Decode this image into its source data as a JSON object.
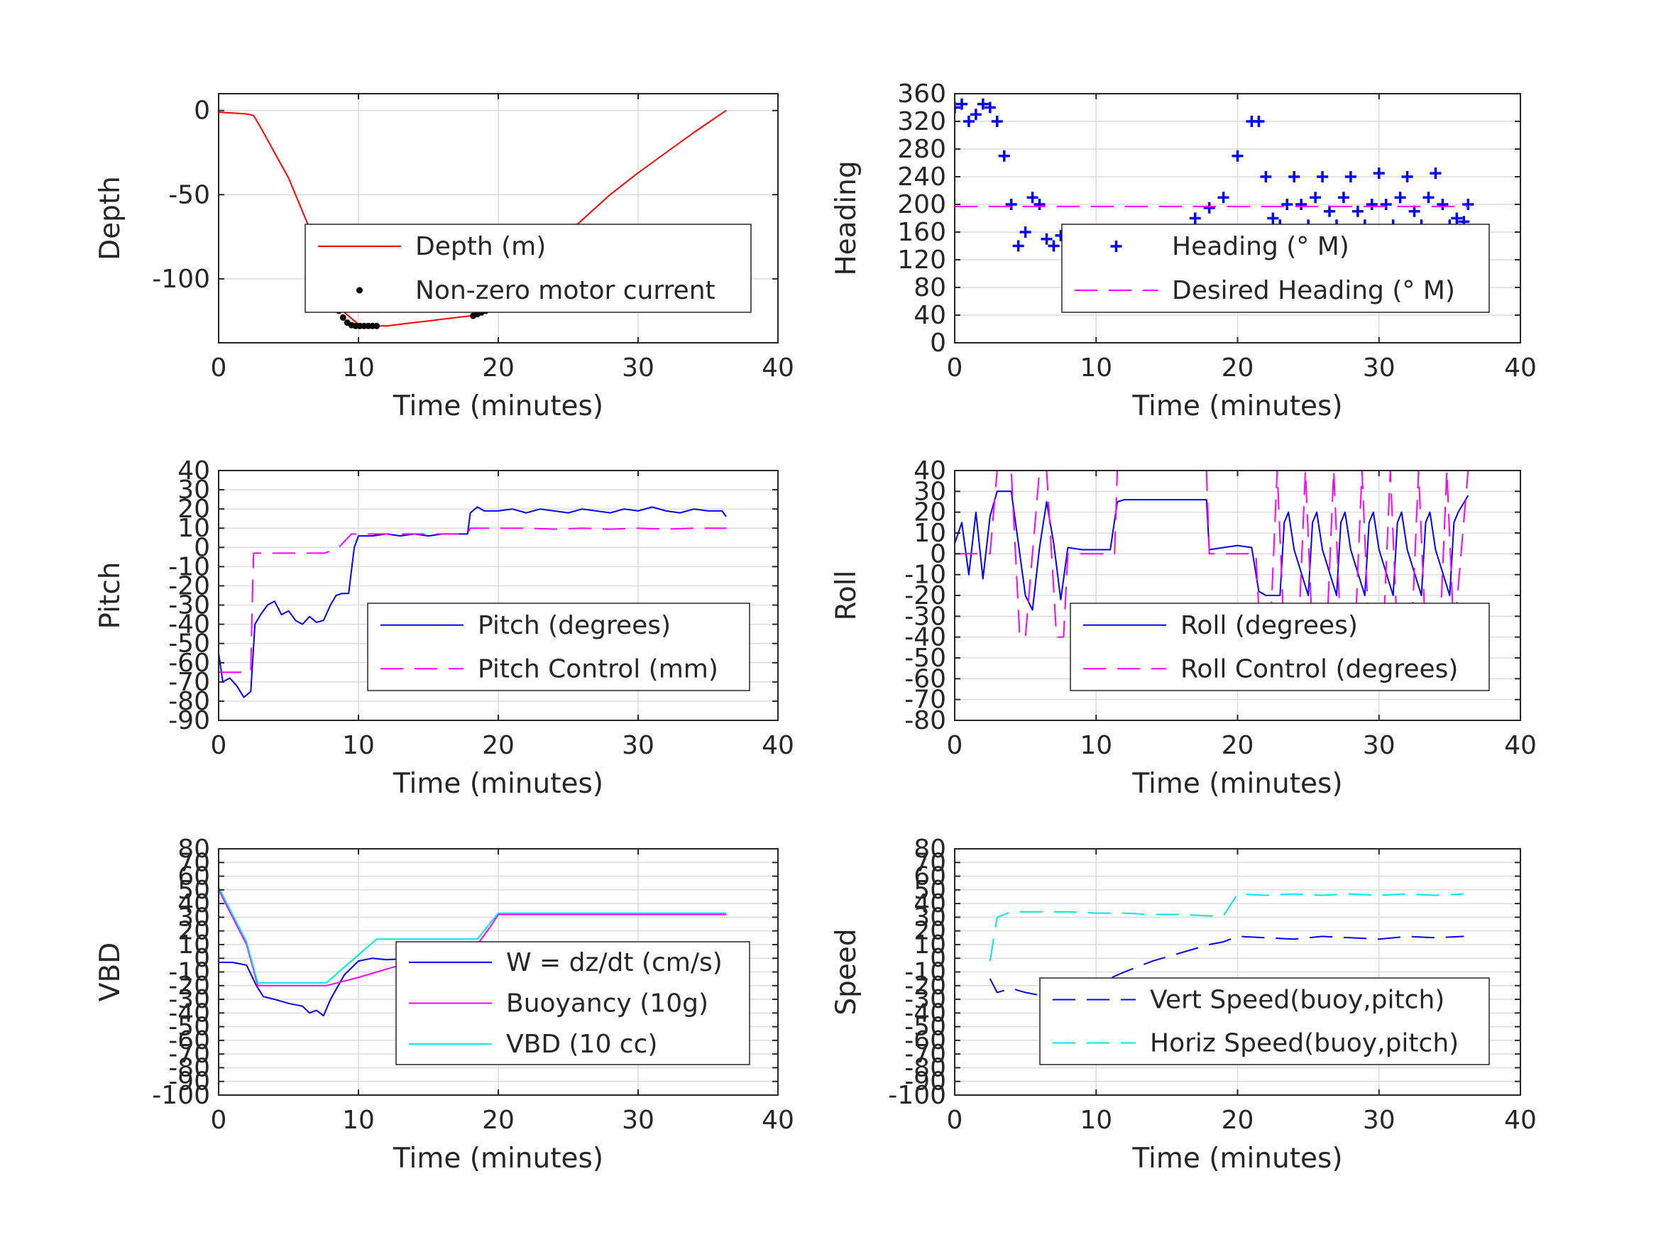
{
  "chart_data": [
    {
      "id": "depth",
      "type": "line",
      "xlabel": "Time (minutes)",
      "ylabel": "Depth",
      "xlim": [
        0,
        40
      ],
      "ylim": [
        -138,
        10
      ],
      "xticks": [
        0,
        10,
        20,
        30,
        40
      ],
      "yticks": [
        0,
        -50,
        -100
      ],
      "legend": "middle-right",
      "grid": true,
      "series": [
        {
          "name": "Depth (m)",
          "color": "#ff0000",
          "style": "solid",
          "x": [
            0,
            1,
            2,
            2.5,
            3,
            4,
            5,
            6,
            7,
            8,
            9,
            10,
            11,
            12,
            13,
            14,
            15,
            16,
            17,
            18,
            19,
            20,
            22,
            24,
            26,
            28,
            30,
            32,
            34,
            36.3
          ],
          "y": [
            -1,
            -1.5,
            -2,
            -3,
            -10,
            -25,
            -40,
            -60,
            -80,
            -105,
            -120,
            -127,
            -128,
            -128,
            -127,
            -126,
            -125,
            -124,
            -123,
            -122,
            -118,
            -111,
            -95,
            -80,
            -65,
            -50,
            -37,
            -25,
            -13,
            0
          ]
        },
        {
          "name": "Non-zero motor current",
          "color": "#000000",
          "style": "dots",
          "x": [
            7.7,
            8.0,
            8.3,
            8.6,
            8.9,
            9.2,
            9.5,
            9.8,
            10.1,
            10.4,
            10.7,
            11.0,
            11.3,
            18.2,
            18.5,
            18.8,
            19.1,
            19.4,
            19.7,
            20.0,
            20.3
          ],
          "y": [
            -106,
            -110,
            -115,
            -119,
            -123,
            -126,
            -127.5,
            -128,
            -128,
            -128,
            -128,
            -128,
            -128,
            -122,
            -121,
            -120,
            -119,
            -118,
            -116,
            -114,
            -112
          ]
        }
      ]
    },
    {
      "id": "heading",
      "type": "line",
      "xlabel": "Time (minutes)",
      "ylabel": "Heading",
      "xlim": [
        0,
        40
      ],
      "ylim": [
        0,
        360
      ],
      "xticks": [
        0,
        10,
        20,
        30,
        40
      ],
      "yticks": [
        0,
        40,
        80,
        120,
        160,
        200,
        240,
        280,
        320,
        360
      ],
      "legend": "lower-right",
      "grid": true,
      "series": [
        {
          "name": "Heading (° M)",
          "color": "#0000ff",
          "style": "plus",
          "x": [
            0,
            0.5,
            1,
            1.5,
            2,
            2.5,
            3,
            3.5,
            4,
            4.5,
            5,
            5.5,
            6,
            6.5,
            7,
            7.5,
            8,
            9,
            10,
            11,
            12,
            13,
            14,
            15,
            16,
            17,
            18,
            19,
            20,
            21,
            21.5,
            22,
            22.5,
            23,
            23.5,
            24,
            24.5,
            25,
            25.5,
            26,
            26.5,
            27,
            27.5,
            28,
            28.5,
            29,
            29.5,
            30,
            30.5,
            31,
            31.5,
            32,
            32.5,
            33,
            33.5,
            34,
            34.5,
            35,
            35.5,
            36,
            36.3
          ],
          "y": [
            340,
            345,
            320,
            330,
            345,
            340,
            320,
            270,
            200,
            140,
            160,
            210,
            200,
            150,
            140,
            155,
            130,
            100,
            75,
            60,
            55,
            70,
            100,
            130,
            160,
            180,
            195,
            210,
            270,
            320,
            320,
            240,
            180,
            170,
            200,
            240,
            200,
            170,
            210,
            240,
            190,
            170,
            210,
            240,
            190,
            170,
            200,
            245,
            200,
            170,
            210,
            240,
            190,
            170,
            210,
            245,
            200,
            170,
            180,
            175,
            200
          ]
        },
        {
          "name": "Desired Heading (° M)",
          "color": "#ff00ff",
          "style": "dashed",
          "x": [
            0,
            36.3
          ],
          "y": [
            197,
            197
          ]
        }
      ]
    },
    {
      "id": "pitch",
      "type": "line",
      "xlabel": "Time (minutes)",
      "ylabel": "Pitch",
      "xlim": [
        0,
        40
      ],
      "ylim": [
        -90,
        40
      ],
      "xticks": [
        0,
        10,
        20,
        30,
        40
      ],
      "yticks": [
        40,
        30,
        20,
        10,
        0,
        -10,
        -20,
        -30,
        -40,
        -50,
        -60,
        -70,
        -80,
        -90
      ],
      "legend": "lower-right",
      "grid": true,
      "series": [
        {
          "name": "Pitch (degrees)",
          "color": "#0000ff",
          "style": "solid",
          "x": [
            0,
            0.3,
            0.8,
            1.3,
            1.8,
            2.3,
            2.6,
            3.0,
            3.5,
            4.0,
            4.5,
            5.0,
            5.5,
            6.0,
            6.5,
            7.0,
            7.5,
            8.0,
            8.4,
            8.8,
            9.3,
            9.7,
            10.0,
            11,
            12,
            13,
            14,
            15,
            16,
            17,
            17.8,
            18.0,
            18.5,
            19,
            20,
            21,
            22,
            23,
            24,
            25,
            26,
            27,
            28,
            29,
            30,
            31,
            32,
            33,
            34,
            35,
            36,
            36.3
          ],
          "y": [
            -55,
            -70,
            -68,
            -72,
            -78,
            -75,
            -40,
            -35,
            -30,
            -28,
            -35,
            -33,
            -38,
            -40,
            -36,
            -39,
            -38,
            -30,
            -25,
            -24,
            -24,
            0,
            6,
            6,
            7,
            6,
            7,
            6,
            7,
            7,
            7,
            18,
            21,
            19,
            19,
            20,
            18,
            20,
            19,
            18,
            20,
            19,
            18,
            20,
            19,
            21,
            19,
            18,
            20,
            19,
            19,
            16
          ]
        },
        {
          "name": "Pitch Control (mm)",
          "color": "#ff00ff",
          "style": "dashed",
          "x": [
            0,
            2.3,
            2.4,
            2.5,
            7.6,
            8.6,
            9.5,
            17.8,
            18.0,
            19,
            20,
            22,
            24,
            26,
            28,
            30,
            32,
            34,
            36.3
          ],
          "y": [
            -65,
            -65,
            -30,
            -3,
            -3,
            0,
            7,
            7,
            10,
            10,
            10,
            10,
            9.5,
            10,
            9.5,
            10,
            9.5,
            10,
            10
          ]
        }
      ]
    },
    {
      "id": "roll",
      "type": "line",
      "xlabel": "Time (minutes)",
      "ylabel": "Roll",
      "xlim": [
        0,
        40
      ],
      "ylim": [
        -80,
        40
      ],
      "xticks": [
        0,
        10,
        20,
        30,
        40
      ],
      "yticks": [
        40,
        30,
        20,
        10,
        0,
        -10,
        -20,
        -30,
        -40,
        -50,
        -60,
        -70,
        -80
      ],
      "legend": "lower-right",
      "grid": true,
      "series": [
        {
          "name": "Roll (degrees)",
          "color": "#0000ff",
          "style": "solid",
          "x": [
            0,
            0.5,
            1,
            1.5,
            2,
            2.5,
            3,
            4,
            4.5,
            5,
            5.5,
            6,
            6.5,
            7,
            7.5,
            8,
            9,
            10,
            11,
            11.5,
            12,
            15,
            17.8,
            18,
            19,
            20,
            21,
            21.5,
            22,
            23,
            23.3,
            23.6,
            24,
            25,
            25.3,
            25.6,
            26,
            27,
            27.3,
            27.6,
            28,
            29,
            29.3,
            29.6,
            30,
            31,
            31.3,
            31.6,
            32,
            33,
            33.3,
            33.6,
            34,
            35,
            35.3,
            35.6,
            36.3
          ],
          "y": [
            5,
            15,
            -10,
            20,
            -12,
            18,
            30,
            30,
            5,
            -20,
            -27,
            3,
            25,
            5,
            -22,
            3,
            2,
            2,
            2,
            25,
            26,
            26,
            26,
            2,
            3,
            4,
            3,
            -18,
            -20,
            -20,
            15,
            20,
            2,
            -20,
            15,
            20,
            2,
            -20,
            15,
            20,
            2,
            -20,
            15,
            20,
            2,
            -20,
            15,
            20,
            2,
            -20,
            15,
            20,
            2,
            -20,
            15,
            20,
            28
          ]
        },
        {
          "name": "Roll Control (degrees)",
          "color": "#ff00ff",
          "style": "dashed",
          "x": [
            0,
            2.5,
            3,
            4,
            4.6,
            5,
            6,
            6.5,
            7.2,
            7.7,
            8,
            11.3,
            11.5,
            17.8,
            18,
            21.3,
            21.6,
            22.3,
            22.8,
            23.3,
            24.3,
            24.8,
            25.3,
            26.3,
            26.8,
            27.3,
            28.3,
            28.8,
            29.3,
            30.3,
            30.8,
            31.3,
            32.3,
            32.8,
            33.3,
            34.3,
            34.8,
            35.3,
            36.3
          ],
          "y": [
            0,
            0,
            40,
            40,
            -40,
            -40,
            40,
            40,
            -40,
            -40,
            0,
            0,
            40,
            40,
            0,
            0,
            -40,
            -40,
            40,
            -40,
            -40,
            40,
            -40,
            -40,
            40,
            -40,
            -40,
            40,
            -40,
            -40,
            40,
            -40,
            -40,
            40,
            -40,
            -40,
            40,
            -40,
            40
          ]
        }
      ]
    },
    {
      "id": "vbd",
      "type": "line",
      "xlabel": "Time (minutes)",
      "ylabel": "VBD",
      "xlim": [
        0,
        40
      ],
      "ylim": [
        -100,
        80
      ],
      "xticks": [
        0,
        10,
        20,
        30,
        40
      ],
      "yticks": [
        80,
        70,
        60,
        50,
        40,
        30,
        20,
        10,
        0,
        -10,
        -20,
        -30,
        -40,
        -50,
        -60,
        -70,
        -80,
        -90,
        -100
      ],
      "ytick_labels": [
        "80",
        "70",
        "60",
        "50",
        "40",
        "30",
        "20",
        "10",
        "0",
        "-10",
        "-20",
        "-30",
        "-40",
        "-50",
        "-60",
        "-70",
        "-80",
        "-90",
        "-100"
      ],
      "legend": "middle-right",
      "grid": true,
      "series": [
        {
          "name": "W = dz/dt (cm/s)",
          "color": "#0000ff",
          "style": "solid",
          "x": [
            0,
            1,
            2,
            2.7,
            3.2,
            4,
            5,
            6,
            6.5,
            7,
            7.5,
            8,
            9,
            10,
            11,
            12,
            14,
            16,
            18,
            19,
            20,
            22,
            24,
            26,
            28,
            30,
            32,
            34,
            36.3
          ],
          "y": [
            -3,
            -3,
            -5,
            -20,
            -28,
            -30,
            -33,
            -35,
            -40,
            -38,
            -42,
            -30,
            -12,
            -2,
            0,
            -1,
            0,
            -1,
            0,
            3,
            10,
            10,
            9,
            10,
            9,
            10,
            9,
            10,
            10
          ]
        },
        {
          "name": "Buoyancy (10g)",
          "color": "#ff00ff",
          "style": "solid",
          "x": [
            0,
            0.5,
            2,
            2.8,
            7.7,
            10,
            12,
            14,
            16,
            18.5,
            19.5,
            20,
            36.3
          ],
          "y": [
            50,
            40,
            10,
            -20,
            -20,
            -14,
            -8,
            -2,
            4,
            10,
            24,
            32,
            32
          ]
        },
        {
          "name": "VBD (10 cc)",
          "color": "#00e5ee",
          "style": "solid",
          "x": [
            0,
            0.5,
            2,
            2.8,
            7.7,
            11.3,
            18.5,
            20,
            36.3
          ],
          "y": [
            52,
            42,
            12,
            -18,
            -18,
            14,
            14,
            33,
            33
          ]
        }
      ]
    },
    {
      "id": "speed",
      "type": "line",
      "xlabel": "Time (minutes)",
      "ylabel": "Speed",
      "xlim": [
        0,
        40
      ],
      "ylim": [
        -100,
        80
      ],
      "xticks": [
        0,
        10,
        20,
        30,
        40
      ],
      "yticks": [
        80,
        70,
        60,
        50,
        40,
        30,
        20,
        10,
        0,
        -10,
        -20,
        -30,
        -40,
        -50,
        -60,
        -70,
        -80,
        -90,
        -100
      ],
      "ytick_labels": [
        "80",
        "70",
        "60",
        "50",
        "40",
        "30",
        "20",
        "10",
        "0",
        "-10",
        "-20",
        "-30",
        "-40",
        "-50",
        "-60",
        "-70",
        "-80",
        "-90",
        "-100"
      ],
      "legend": "lower-right",
      "grid": true,
      "series": [
        {
          "name": "Vert Speed(buoy,pitch)",
          "color": "#0000ff",
          "style": "dashed",
          "x": [
            2.5,
            3,
            4,
            5,
            6,
            7,
            8,
            10,
            12,
            14,
            16,
            18,
            19,
            20,
            22,
            24,
            26,
            28,
            30,
            32,
            34,
            36
          ],
          "y": [
            -15,
            -25,
            -22,
            -25,
            -27,
            -26,
            -28,
            -19,
            -10,
            -2,
            4,
            10,
            12,
            16,
            15,
            14,
            16,
            15,
            14,
            16,
            15,
            16
          ]
        },
        {
          "name": "Horiz Speed(buoy,pitch)",
          "color": "#00e5ee",
          "style": "dashed",
          "x": [
            2.5,
            3,
            4,
            6,
            8,
            10,
            12,
            14,
            16,
            18,
            19,
            20,
            22,
            24,
            26,
            28,
            30,
            32,
            34,
            36
          ],
          "y": [
            -2,
            30,
            34,
            34,
            34,
            33,
            33,
            32,
            32,
            31,
            31,
            47,
            46,
            47,
            46,
            47,
            46,
            47,
            46,
            47
          ]
        }
      ]
    }
  ]
}
